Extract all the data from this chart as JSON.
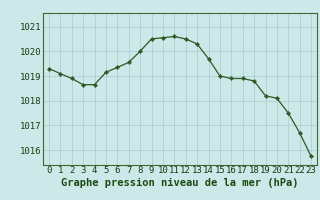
{
  "x": [
    0,
    1,
    2,
    3,
    4,
    5,
    6,
    7,
    8,
    9,
    10,
    11,
    12,
    13,
    14,
    15,
    16,
    17,
    18,
    19,
    20,
    21,
    22,
    23
  ],
  "y": [
    1019.3,
    1019.1,
    1018.9,
    1018.65,
    1018.65,
    1019.15,
    1019.35,
    1019.55,
    1020.0,
    1020.5,
    1020.55,
    1020.6,
    1020.5,
    1020.3,
    1019.7,
    1019.0,
    1018.9,
    1018.9,
    1018.8,
    1018.2,
    1018.1,
    1017.5,
    1016.7,
    1015.75
  ],
  "line_color": "#2d5a27",
  "marker": "D",
  "marker_size": 2.2,
  "bg_color": "#cce8e8",
  "grid_color": "#aacaca",
  "xlabel": "Graphe pression niveau de la mer (hPa)",
  "xlabel_fontsize": 7.5,
  "ylabel_ticks": [
    1016,
    1017,
    1018,
    1019,
    1020,
    1021
  ],
  "xlim": [
    -0.5,
    23.5
  ],
  "ylim": [
    1015.4,
    1021.55
  ],
  "tick_fontsize": 6.5,
  "xlabel_color": "#1a4a10"
}
